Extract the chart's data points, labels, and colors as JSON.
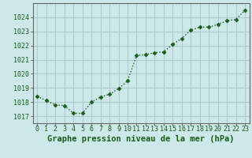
{
  "x": [
    0,
    1,
    2,
    3,
    4,
    5,
    6,
    7,
    8,
    9,
    10,
    11,
    12,
    13,
    14,
    15,
    16,
    17,
    18,
    19,
    20,
    21,
    22,
    23
  ],
  "y": [
    1018.4,
    1018.1,
    1017.8,
    1017.75,
    1017.2,
    1017.2,
    1018.0,
    1018.35,
    1018.55,
    1018.95,
    1019.5,
    1021.3,
    1021.35,
    1021.5,
    1021.55,
    1022.1,
    1022.5,
    1023.1,
    1023.3,
    1023.3,
    1023.5,
    1023.75,
    1023.85,
    1024.5
  ],
  "line_color": "#1a5c1a",
  "marker": "D",
  "marker_size": 2.5,
  "bg_color": "#cce8e8",
  "grid_color": "#aacccc",
  "xlabel": "Graphe pression niveau de la mer (hPa)",
  "xlabel_color": "#1a5c1a",
  "xlabel_fontsize": 7.5,
  "ytick_color": "#1a5c1a",
  "xtick_color": "#1a5c1a",
  "ylim": [
    1016.5,
    1025.0
  ],
  "yticks": [
    1017,
    1018,
    1019,
    1020,
    1021,
    1022,
    1023,
    1024
  ],
  "xticks": [
    0,
    1,
    2,
    3,
    4,
    5,
    6,
    7,
    8,
    9,
    10,
    11,
    12,
    13,
    14,
    15,
    16,
    17,
    18,
    19,
    20,
    21,
    22,
    23
  ],
  "tick_fontsize": 6,
  "line_width": 1.0,
  "axis_color": "#666666"
}
